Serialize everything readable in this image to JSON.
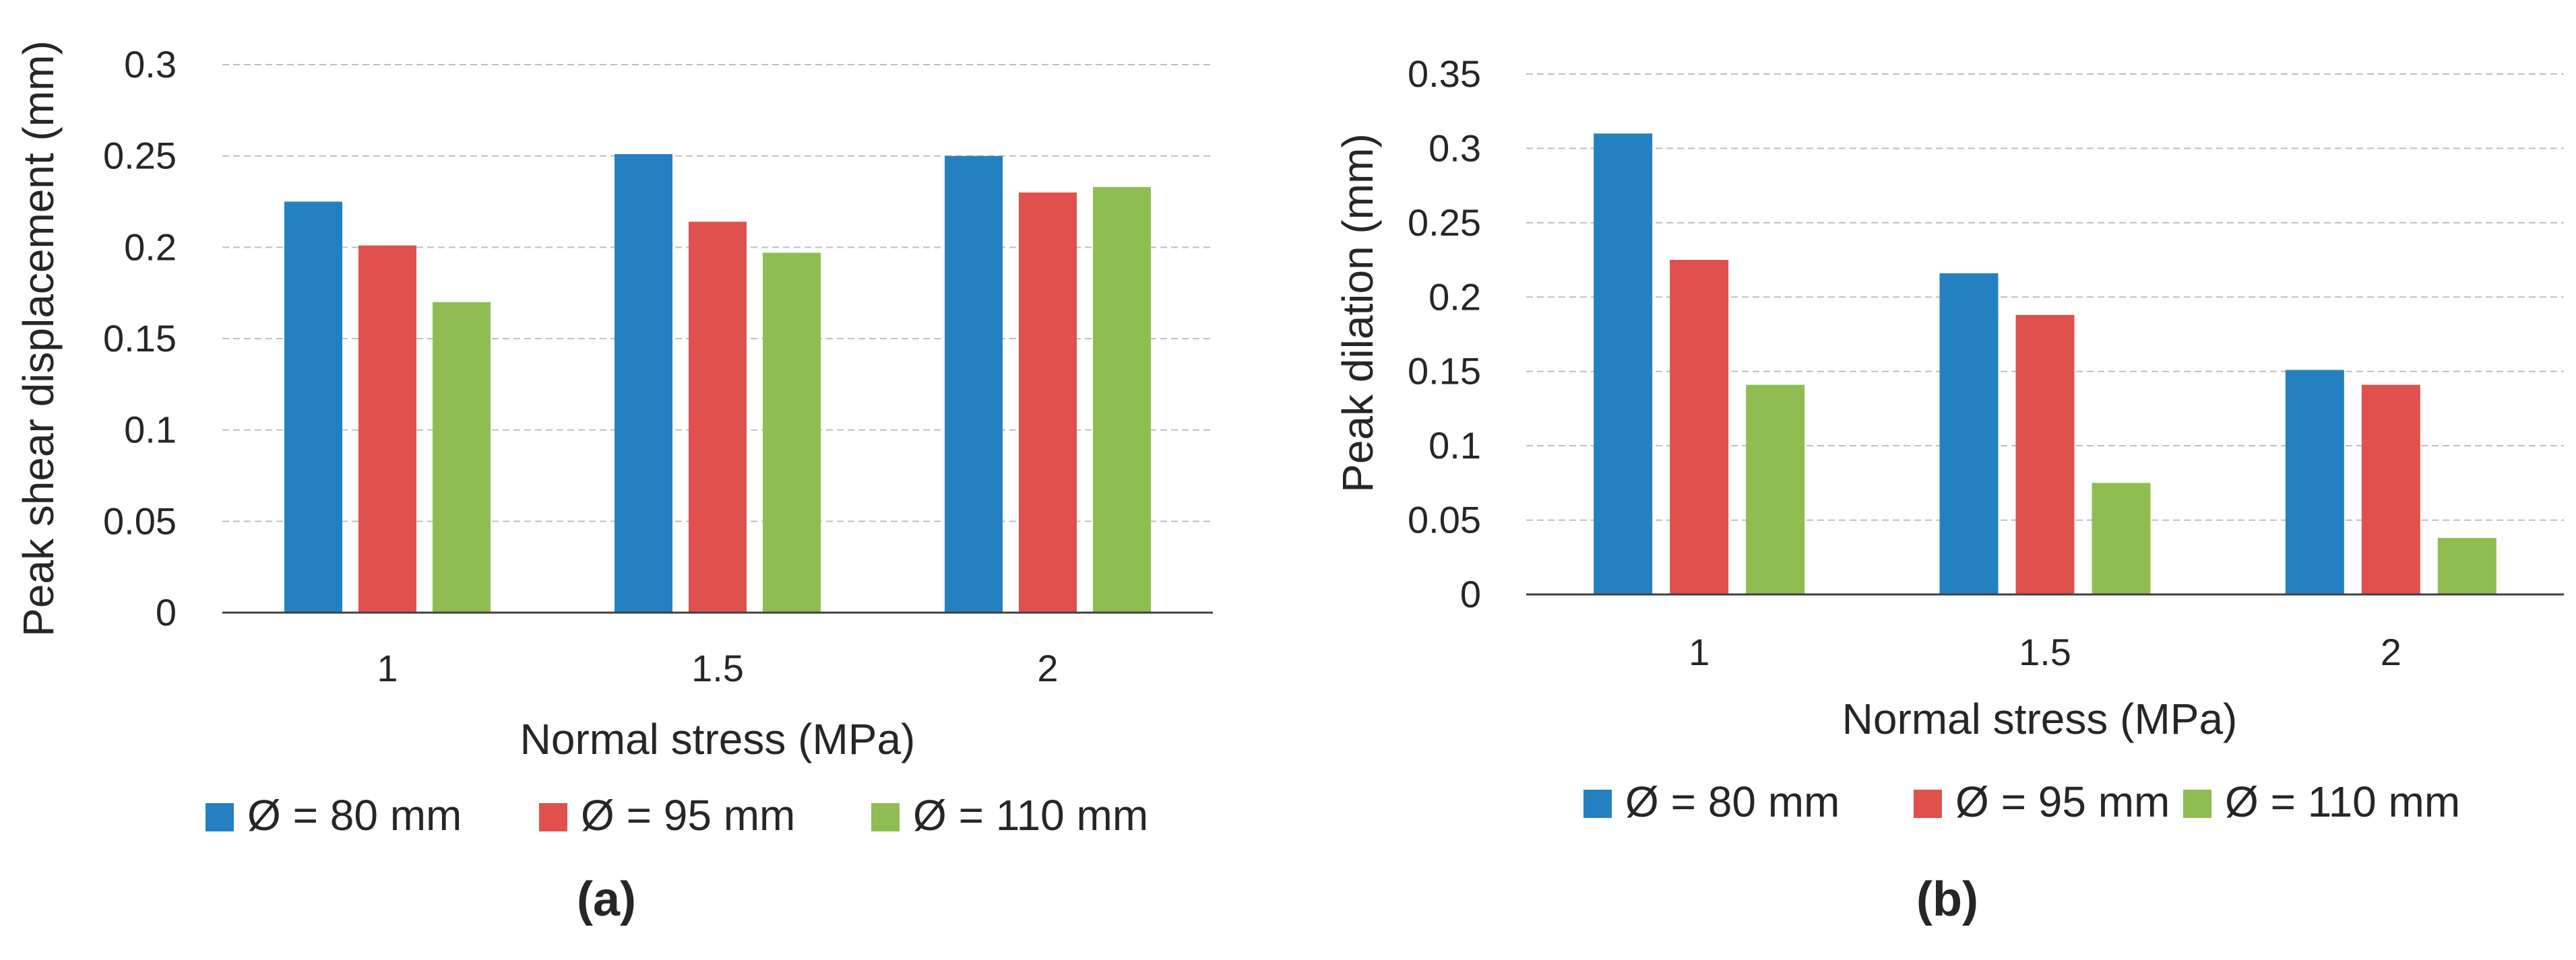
{
  "chart_data": [
    {
      "type": "bar",
      "title": "",
      "panel_label": "(a)",
      "categories": [
        "1",
        "1.5",
        "2"
      ],
      "series": [
        {
          "name": "Ø = 80 mm",
          "color": "#2580c2",
          "values": [
            0.225,
            0.251,
            0.25
          ]
        },
        {
          "name": "Ø = 95 mm",
          "color": "#e0504c",
          "values": [
            0.201,
            0.214,
            0.23
          ]
        },
        {
          "name": "Ø = 110 mm",
          "color": "#8fbd52",
          "values": [
            0.17,
            0.197,
            0.233
          ]
        }
      ],
      "xlabel": "Normal stress (MPa)",
      "ylabel": "Peak shear displacement (mm)",
      "ylim": [
        0,
        0.3
      ],
      "yticks": [
        "0",
        "0.05",
        "0.1",
        "0.15",
        "0.2",
        "0.25",
        "0.3"
      ],
      "grid": true,
      "legend_position": "bottom"
    },
    {
      "type": "bar",
      "title": "",
      "panel_label": "(b)",
      "categories": [
        "1",
        "1.5",
        "2"
      ],
      "series": [
        {
          "name": "Ø = 80 mm",
          "color": "#2580c2",
          "values": [
            0.31,
            0.216,
            0.151
          ]
        },
        {
          "name": "Ø = 95 mm",
          "color": "#e0504c",
          "values": [
            0.225,
            0.188,
            0.141
          ]
        },
        {
          "name": "Ø = 110 mm",
          "color": "#8fbd52",
          "values": [
            0.141,
            0.075,
            0.038
          ]
        }
      ],
      "xlabel": "Normal stress (MPa)",
      "ylabel": "Peak dilation (mm)",
      "ylim": [
        0,
        0.35
      ],
      "yticks": [
        "0",
        "0.05",
        "0.1",
        "0.15",
        "0.2",
        "0.25",
        "0.3",
        "0.35"
      ],
      "grid": true,
      "legend_position": "bottom"
    }
  ]
}
